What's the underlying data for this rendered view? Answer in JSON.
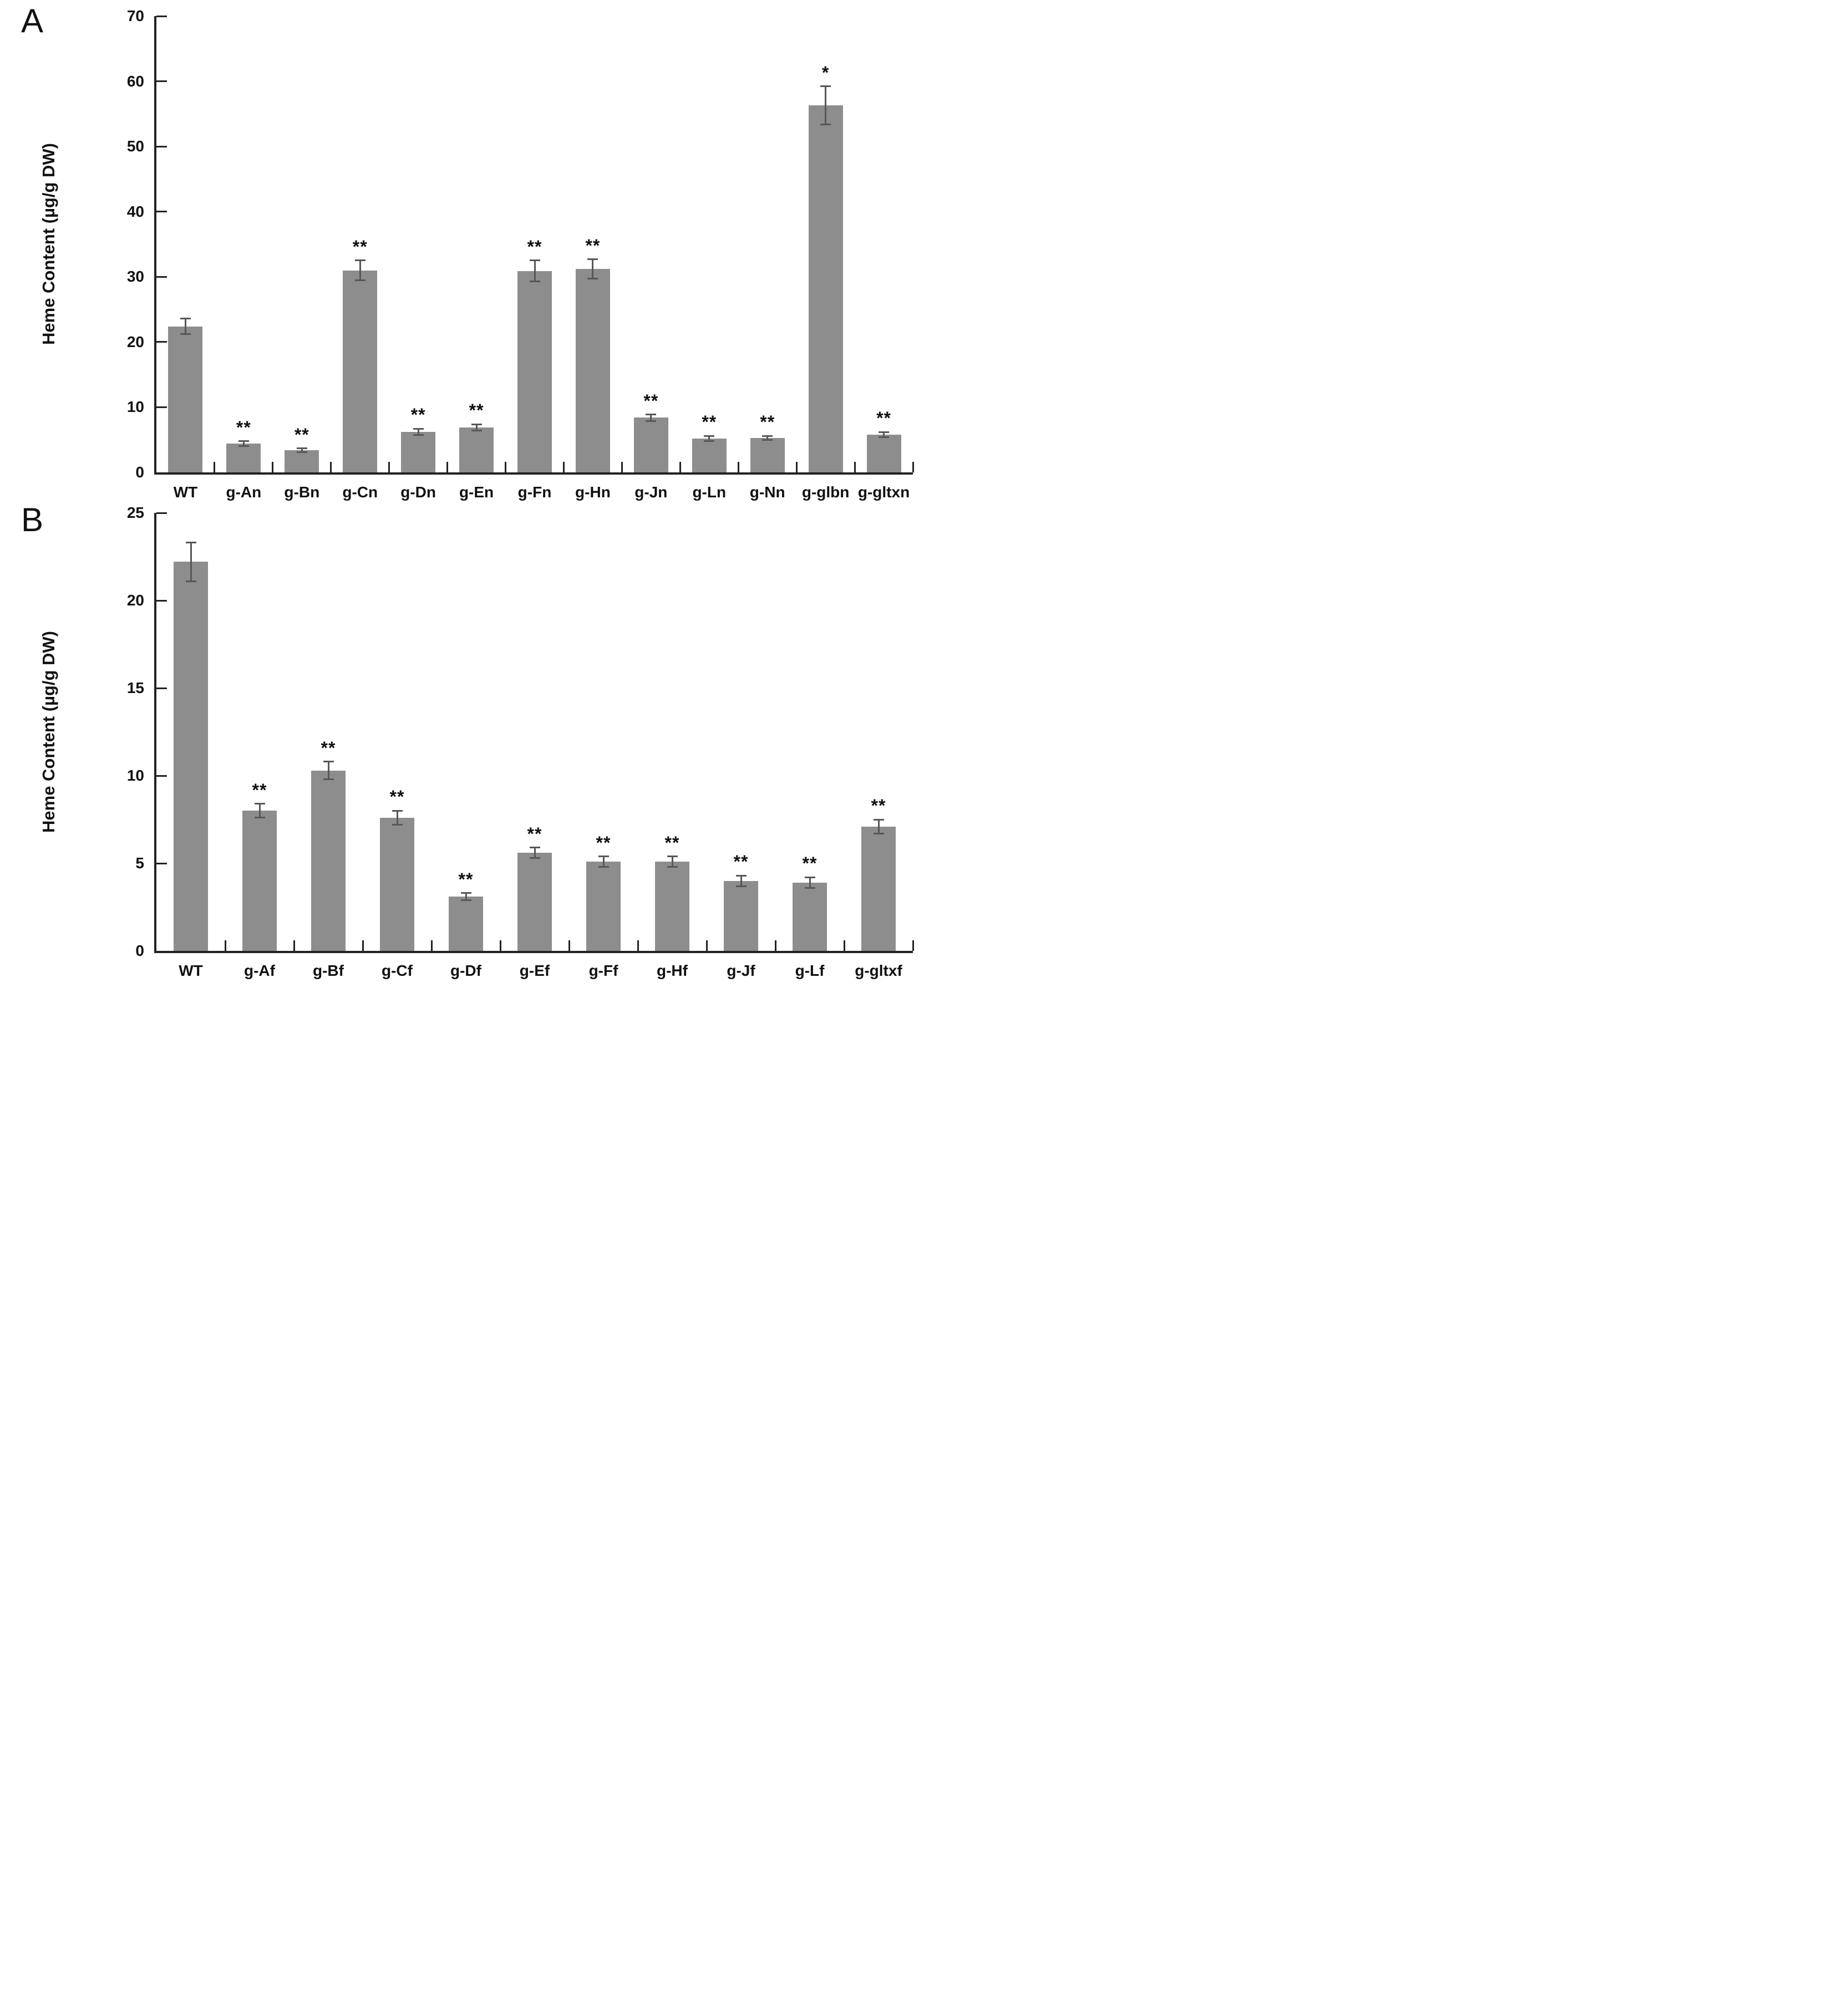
{
  "figure": {
    "background_color": "#ffffff",
    "bar_color": "#8d8d8d",
    "error_bar_color": "#575757",
    "axis_color": "#222222",
    "text_color": "#111111"
  },
  "chart_data": [
    {
      "type": "bar",
      "panel_label": "A",
      "title": "",
      "xlabel": "",
      "ylabel": "Heme Content (µg/g DW)",
      "ylim": [
        0,
        70
      ],
      "ytick_step": 10,
      "ytick_labels": [
        "0",
        "10",
        "20",
        "30",
        "40",
        "50",
        "60",
        "70"
      ],
      "grid": false,
      "legend": "none",
      "categories": [
        "WT",
        "g-An",
        "g-Bn",
        "g-Cn",
        "g-Dn",
        "g-En",
        "g-Fn",
        "g-Hn",
        "g-Jn",
        "g-Ln",
        "g-Nn",
        "g-glbn",
        "g-gltxn"
      ],
      "values": [
        22.4,
        4.4,
        3.4,
        31.0,
        6.2,
        6.9,
        30.9,
        31.2,
        8.4,
        5.2,
        5.3,
        56.3,
        5.8
      ],
      "errors": [
        1.2,
        0.4,
        0.3,
        1.5,
        0.5,
        0.5,
        1.6,
        1.5,
        0.5,
        0.4,
        0.3,
        2.9,
        0.4
      ],
      "significance": [
        "",
        "**",
        "**",
        "**",
        "**",
        "**",
        "**",
        "**",
        "**",
        "**",
        "**",
        "*",
        "**"
      ]
    },
    {
      "type": "bar",
      "panel_label": "B",
      "title": "",
      "xlabel": "",
      "ylabel": "Heme Content (µg/g DW)",
      "ylim": [
        0,
        25
      ],
      "ytick_step": 5,
      "ytick_labels": [
        "0",
        "5",
        "10",
        "15",
        "20",
        "25"
      ],
      "grid": false,
      "legend": "none",
      "categories": [
        "WT",
        "g-Af",
        "g-Bf",
        "g-Cf",
        "g-Df",
        "g-Ef",
        "g-Ff",
        "g-Hf",
        "g-Jf",
        "g-Lf",
        "g-gltxf"
      ],
      "values": [
        22.2,
        8.0,
        10.3,
        7.6,
        3.1,
        5.6,
        5.1,
        5.1,
        4.0,
        3.9,
        7.1
      ],
      "errors": [
        1.1,
        0.4,
        0.5,
        0.4,
        0.2,
        0.3,
        0.3,
        0.3,
        0.3,
        0.3,
        0.4
      ],
      "significance": [
        "",
        "**",
        "**",
        "**",
        "**",
        "**",
        "**",
        "**",
        "**",
        "**",
        "**"
      ]
    }
  ]
}
